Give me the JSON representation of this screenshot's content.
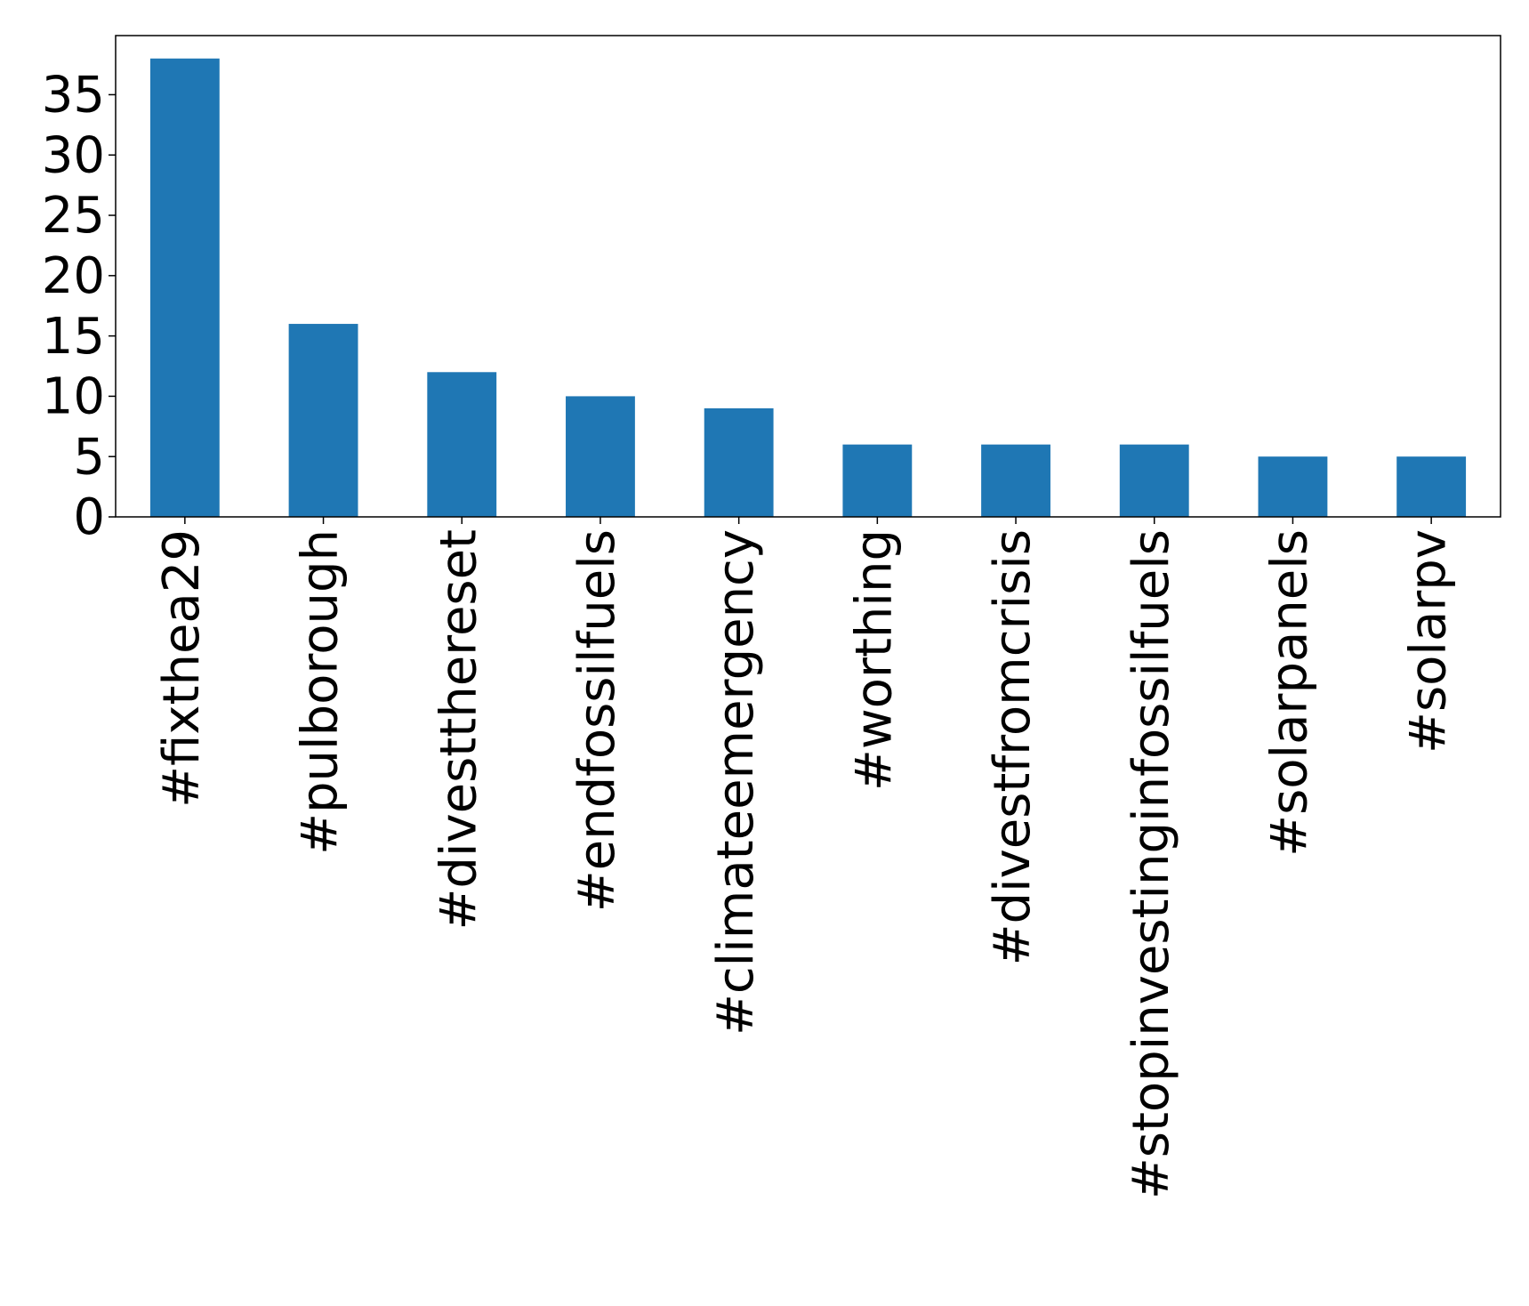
{
  "chart_data": {
    "type": "bar",
    "categories": [
      "#fixthea29",
      "#pulborough",
      "#divestthereset",
      "#endfossilfuels",
      "#climateemergency",
      "#worthing",
      "#divestfromcrisis",
      "#stopinvestinginfossilfuels",
      "#solarpanels",
      "#solarpv"
    ],
    "values": [
      38,
      16,
      12,
      10,
      9,
      6,
      6,
      6,
      5,
      5
    ],
    "color": "#1f77b4",
    "ylim": [
      0,
      39.9
    ],
    "yticks": [
      0,
      5,
      10,
      15,
      20,
      25,
      30,
      35
    ],
    "grid": false
  }
}
